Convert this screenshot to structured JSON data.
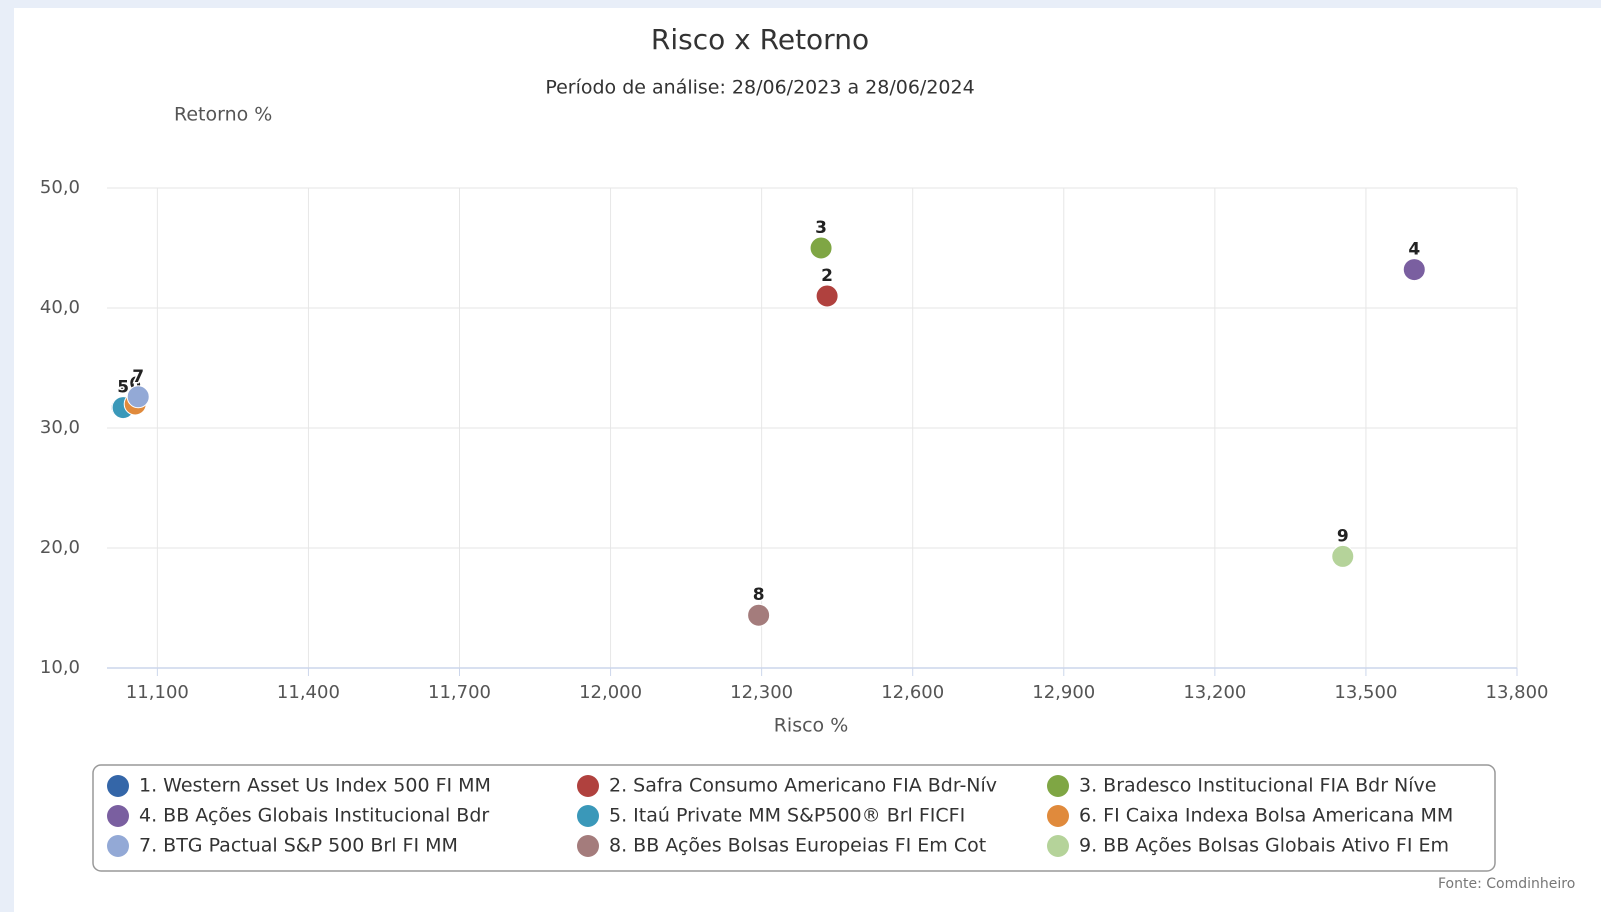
{
  "chart_data": {
    "type": "scatter",
    "title": "Risco x Retorno",
    "subtitle": "Período de análise: 28/06/2023 a 28/06/2024",
    "y_label": "Retorno %",
    "x_label": "Risco %",
    "source": "Fonte: Comdinheiro",
    "xlim": [
      11000,
      13800
    ],
    "ylim": [
      10,
      50
    ],
    "xticks": [
      {
        "value": 11100,
        "label": "11,100"
      },
      {
        "value": 11400,
        "label": "11,400"
      },
      {
        "value": 11700,
        "label": "11,700"
      },
      {
        "value": 12000,
        "label": "12,000"
      },
      {
        "value": 12300,
        "label": "12,300"
      },
      {
        "value": 12600,
        "label": "12,600"
      },
      {
        "value": 12900,
        "label": "12,900"
      },
      {
        "value": 13200,
        "label": "13,200"
      },
      {
        "value": 13500,
        "label": "13,500"
      },
      {
        "value": 13800,
        "label": "13,800"
      }
    ],
    "yticks": [
      {
        "value": 10,
        "label": "10,0"
      },
      {
        "value": 20,
        "label": "20,0"
      },
      {
        "value": 30,
        "label": "30,0"
      },
      {
        "value": 40,
        "label": "40,0"
      },
      {
        "value": 50,
        "label": "50,0"
      }
    ],
    "grid": true,
    "series": [
      {
        "name": "1. Western Asset Us Index 500 FI MM",
        "label": "1",
        "color": "#3466a8",
        "x": [
          11030
        ],
        "values": [
          31.7
        ]
      },
      {
        "name": "2. Safra Consumo Americano FIA Bdr-Nív",
        "label": "2",
        "color": "#b0413e",
        "x": [
          12430
        ],
        "values": [
          41.0
        ]
      },
      {
        "name": "3. Bradesco Institucional FIA Bdr Níve",
        "label": "3",
        "color": "#7fa644",
        "x": [
          12418
        ],
        "values": [
          45.0
        ]
      },
      {
        "name": "4. BB Ações Globais Institucional Bdr",
        "label": "4",
        "color": "#7a5fa0",
        "x": [
          13596
        ],
        "values": [
          43.2
        ]
      },
      {
        "name": "5. Itaú Private MM S&P500® Brl FICFI",
        "label": "5",
        "color": "#3a98b9",
        "x": [
          11032
        ],
        "values": [
          31.7
        ]
      },
      {
        "name": "6. FI Caixa Indexa Bolsa Americana MM",
        "label": "6",
        "color": "#e08a3c",
        "x": [
          11056
        ],
        "values": [
          32.0
        ]
      },
      {
        "name": "7. BTG Pactual S&P 500 Brl FI MM",
        "label": "7",
        "color": "#93a9d6",
        "x": [
          11062
        ],
        "values": [
          32.6
        ]
      },
      {
        "name": "8. BB Ações Bolsas Europeias FI Em Cot",
        "label": "8",
        "color": "#a47c7c",
        "x": [
          12294
        ],
        "values": [
          14.4
        ]
      },
      {
        "name": "9. BB Ações Bolsas Globais Ativo FI Em",
        "label": "9",
        "color": "#b5d39a",
        "x": [
          13454
        ],
        "values": [
          19.3
        ]
      }
    ]
  }
}
